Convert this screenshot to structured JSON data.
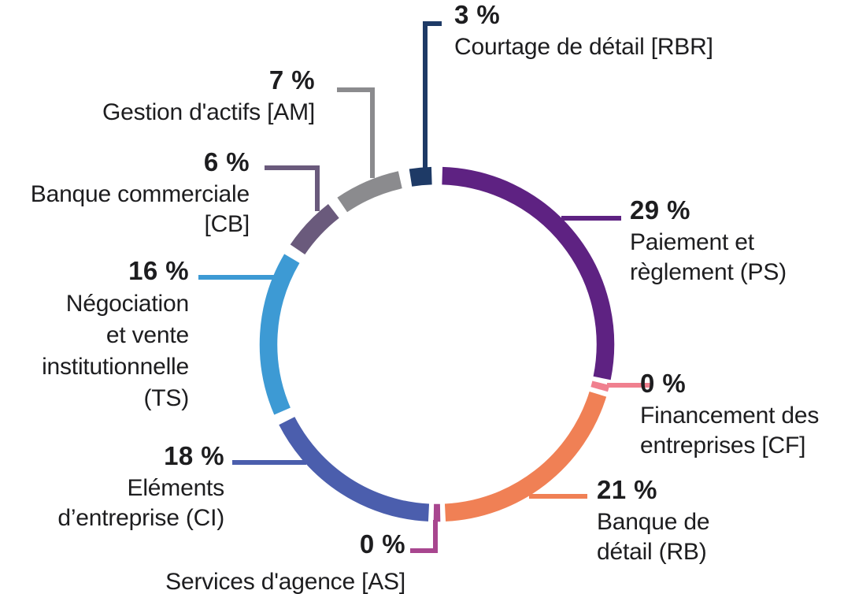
{
  "figure": {
    "background": "#ffffff",
    "text_color": "#1d1d1f"
  },
  "chart_data": {
    "type": "pie",
    "subtype": "donut-ring",
    "units": "%",
    "title": "",
    "order": "clockwise-from-top",
    "segments": [
      {
        "code": "PS",
        "label": "Paiement et règlement (PS)",
        "value_pct": 29,
        "color": "#5e2282"
      },
      {
        "code": "CF",
        "label": "Financement des entreprises [CF]",
        "value_pct": 0,
        "color": "#f0808f"
      },
      {
        "code": "RB",
        "label": "Banque de détail (RB)",
        "value_pct": 21,
        "color": "#f08055"
      },
      {
        "code": "AS",
        "label": "Services d'agence [AS]",
        "value_pct": 0,
        "color": "#a8468f"
      },
      {
        "code": "CI",
        "label": "Eléments d’entreprise (CI)",
        "value_pct": 18,
        "color": "#4b5ead"
      },
      {
        "code": "TS",
        "label": "Négociation et vente institutionnelle (TS)",
        "value_pct": 16,
        "color": "#3d9ad4"
      },
      {
        "code": "CB",
        "label": "Banque commerciale [CB]",
        "value_pct": 6,
        "color": "#6a5a7c"
      },
      {
        "code": "AM",
        "label": "Gestion d'actifs [AM]",
        "value_pct": 7,
        "color": "#8b8b8e"
      },
      {
        "code": "RBR",
        "label": "Courtage de détail [RBR]",
        "value_pct": 3,
        "color": "#1e3a66"
      }
    ]
  },
  "labels": {
    "rbr": {
      "pct": "3 %",
      "lines": [
        "Courtage de détail [RBR]"
      ]
    },
    "ps": {
      "pct": "29 %",
      "lines": [
        "Paiement et",
        "règlement (PS)"
      ]
    },
    "cf": {
      "pct": "0 %",
      "lines": [
        "Financement des",
        "entreprises [CF]"
      ]
    },
    "rb": {
      "pct": "21 %",
      "lines": [
        "Banque de",
        "détail (RB)"
      ]
    },
    "as": {
      "pct": "0 %",
      "lines": [
        "Services d'agence [AS]"
      ]
    },
    "ci": {
      "pct": "18 %",
      "lines": [
        "Eléments",
        "d’entreprise (CI)"
      ]
    },
    "ts": {
      "pct": "16 %",
      "lines": [
        "Négociation",
        "et vente",
        "institutionnelle",
        "(TS)"
      ]
    },
    "cb": {
      "pct": "6 %",
      "lines": [
        "Banque commerciale",
        "[CB]"
      ]
    },
    "am": {
      "pct": "7 %",
      "lines": [
        "Gestion d'actifs [AM]"
      ]
    }
  }
}
